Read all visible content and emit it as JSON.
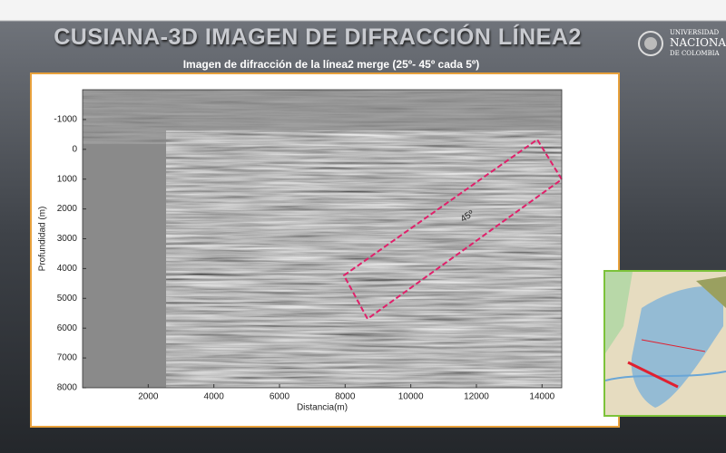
{
  "slide": {
    "title": "CUSIANA-3D IMAGEN DE DIFRACCIÓN LÍNEA2",
    "subtitle": "Imagen de difracción de la línea2  merge (25º- 45º cada 5º)",
    "logo": [
      "UNIVERSIDAD",
      "NACIONAL",
      "DE COLOMBIA"
    ],
    "plot": {
      "xlabel": "Distancia(m)",
      "ylabel": "Profundidad (m)",
      "xlim": [
        0,
        14600
      ],
      "ylim": [
        -2000,
        8000
      ],
      "xticks": [
        2000,
        4000,
        6000,
        8000,
        10000,
        12000,
        14000
      ],
      "yticks": [
        -1000,
        0,
        1000,
        2000,
        3000,
        4000,
        5000,
        6000,
        7000,
        8000
      ],
      "annotation": "45º"
    }
  }
}
